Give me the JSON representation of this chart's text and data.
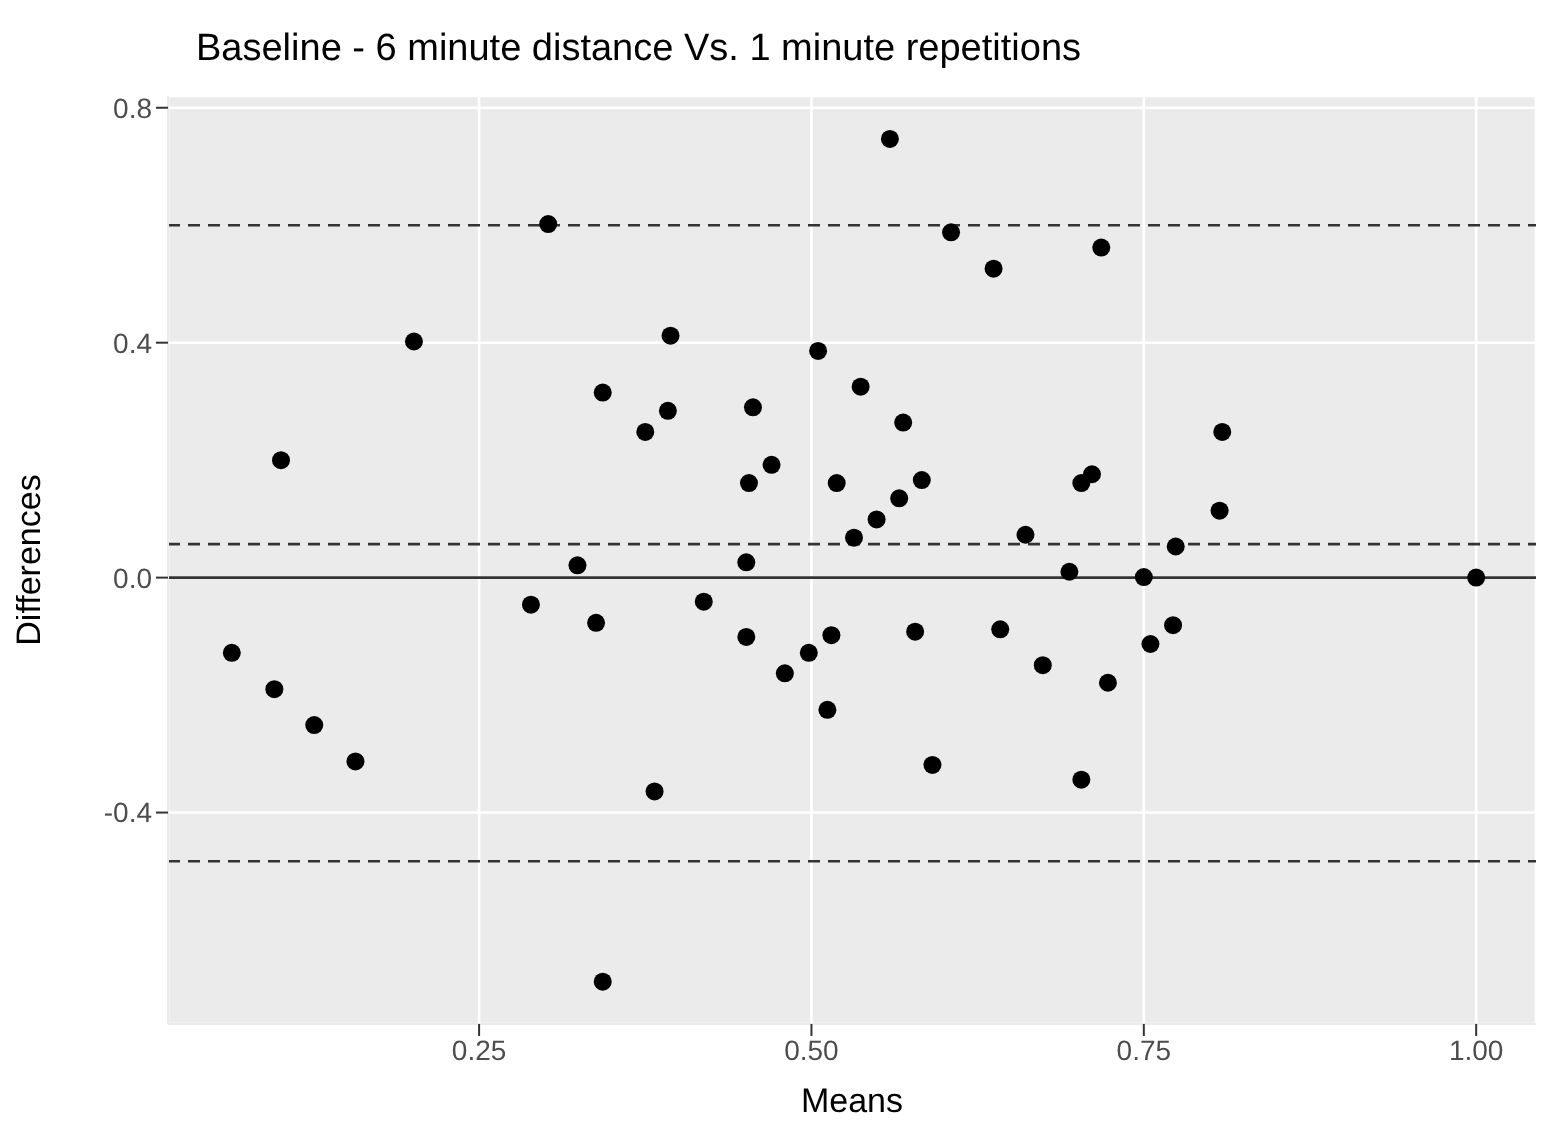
{
  "chart_data": {
    "type": "scatter",
    "title": "Baseline - 6 minute distance Vs. 1 minute repetitions",
    "xlabel": "Means",
    "ylabel": "Differences",
    "xlim": [
      0.016,
      1.045
    ],
    "xticks": [
      {
        "value": 0.25,
        "label": "0.25"
      },
      {
        "value": 0.5,
        "label": "0.50"
      },
      {
        "value": 0.75,
        "label": "0.75"
      },
      {
        "value": 1,
        "label": "1.00"
      }
    ],
    "ylim": [
      -0.76,
      0.82
    ],
    "yticks": [
      {
        "value": -0.4,
        "label": "-0.4"
      },
      {
        "value": 0,
        "label": "0.0"
      },
      {
        "value": 0.4,
        "label": "0.4"
      },
      {
        "value": 0.8,
        "label": "0.8"
      }
    ],
    "grid": true,
    "marker": "circle",
    "ref_lines": [
      {
        "axis": "y",
        "value": 0,
        "color": "#333333",
        "line_style": "solid"
      },
      {
        "axis": "y",
        "value": 0.6,
        "color": "#333333",
        "line_style": "dashed"
      },
      {
        "axis": "y",
        "value": 0.057,
        "color": "#333333",
        "line_style": "dashed"
      },
      {
        "axis": "y",
        "value": -0.483,
        "color": "#333333",
        "line_style": "dashed"
      }
    ],
    "series": [
      {
        "color": "#000000",
        "x": [
          0.064,
          0.096,
          0.101,
          0.126,
          0.157,
          0.201,
          0.289,
          0.302,
          0.324,
          0.338,
          0.343,
          0.343,
          0.375,
          0.382,
          0.392,
          0.394,
          0.419,
          0.451,
          0.451,
          0.453,
          0.456,
          0.47,
          0.48,
          0.498,
          0.505,
          0.512,
          0.515,
          0.519,
          0.532,
          0.537,
          0.549,
          0.559,
          0.566,
          0.569,
          0.578,
          0.583,
          0.591,
          0.605,
          0.637,
          0.642,
          0.661,
          0.674,
          0.694,
          0.703,
          0.703,
          0.711,
          0.718,
          0.723,
          0.75,
          0.755,
          0.772,
          0.774,
          0.807,
          0.809,
          1.0
        ],
        "values": [
          -0.128,
          -0.19,
          0.2,
          -0.251,
          -0.313,
          0.402,
          -0.046,
          0.602,
          0.021,
          -0.077,
          0.315,
          -0.688,
          0.248,
          -0.364,
          0.284,
          0.412,
          -0.041,
          0.026,
          -0.101,
          0.161,
          0.29,
          0.192,
          -0.163,
          -0.128,
          0.386,
          -0.225,
          -0.098,
          0.161,
          0.068,
          0.325,
          0.099,
          0.747,
          0.135,
          0.264,
          -0.092,
          0.166,
          -0.319,
          0.588,
          0.526,
          -0.088,
          0.073,
          -0.149,
          0.01,
          0.161,
          -0.344,
          0.176,
          0.562,
          -0.179,
          0.001,
          -0.113,
          -0.081,
          0.053,
          0.114,
          0.248,
          0.0
        ]
      }
    ]
  }
}
